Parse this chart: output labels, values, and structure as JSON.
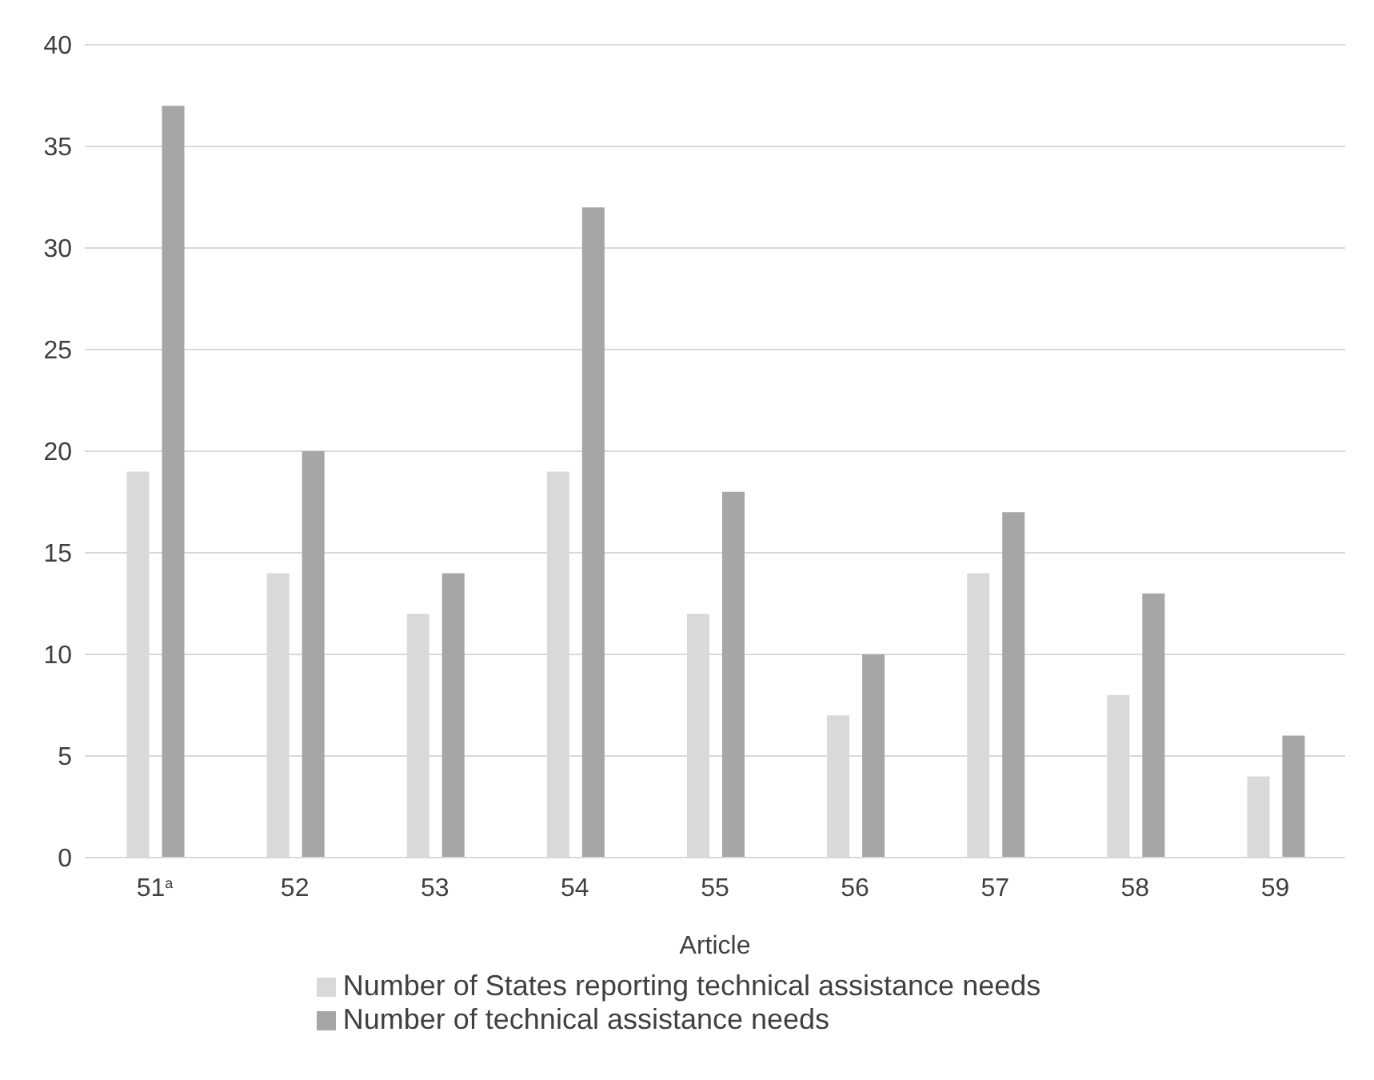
{
  "chart_data": {
    "type": "bar",
    "xlabel": "Article",
    "categories": [
      "51$^{a}$",
      "52",
      "53",
      "54",
      "55",
      "56",
      "57",
      "58",
      "59"
    ],
    "series": [
      {
        "name": "Number of States reporting technical assistance needs",
        "color": "#d9d9d9",
        "values": [
          19,
          14,
          12,
          19,
          12,
          7,
          14,
          8,
          4
        ]
      },
      {
        "name": "Number of technical assistance needs",
        "color": "#a6a6a6",
        "values": [
          37,
          20,
          14,
          32,
          18,
          10,
          17,
          13,
          6
        ]
      }
    ],
    "ylim": [
      0,
      40
    ],
    "yticks": [
      0,
      5,
      10,
      15,
      20,
      25,
      30,
      35,
      40
    ],
    "grid": "y",
    "legend": "bottom"
  }
}
